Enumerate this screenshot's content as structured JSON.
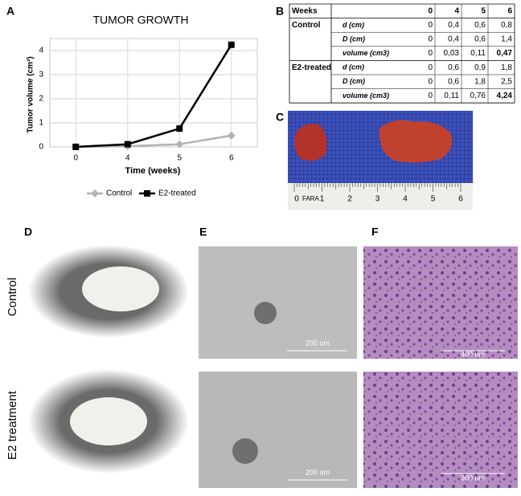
{
  "panel_labels": [
    "A",
    "B",
    "C",
    "D",
    "E",
    "F"
  ],
  "chart_data": {
    "type": "line",
    "title": "TUMOR GROWTH",
    "x_label": "Time (weeks)",
    "y_label": "Tumor volume (cm³)",
    "categories": [
      "0",
      "4",
      "5",
      "6"
    ],
    "series": [
      {
        "name": "Control",
        "color": "#b3b3b3",
        "marker": "diamond",
        "values": [
          0,
          0.03,
          0.11,
          0.47
        ]
      },
      {
        "name": "E2-treated",
        "color": "#000000",
        "marker": "square",
        "values": [
          0,
          0.11,
          0.76,
          4.24
        ]
      }
    ],
    "ylim": [
      0,
      4.5
    ],
    "yticks": [
      0,
      1,
      2,
      3,
      4
    ],
    "grid": true,
    "legend": "bottom"
  },
  "table": {
    "header": "Weeks",
    "columns": [
      "0",
      "4",
      "5",
      "6"
    ],
    "groups": [
      {
        "name": "Control",
        "rows": [
          {
            "label": "d (cm)",
            "values": [
              "0",
              "0,4",
              "0,6",
              "0,8"
            ]
          },
          {
            "label": "D (cm)",
            "values": [
              "0",
              "0,4",
              "0,6",
              "1,4"
            ]
          },
          {
            "label": "volume (cm3)",
            "values": [
              "0",
              "0,03",
              "0,11",
              "0,47"
            ]
          }
        ]
      },
      {
        "name": "E2-treated",
        "rows": [
          {
            "label": "d (cm)",
            "values": [
              "0",
              "0,6",
              "0,9",
              "1,8"
            ]
          },
          {
            "label": "D (cm)",
            "values": [
              "0",
              "0,6",
              "1,8",
              "2,5"
            ]
          },
          {
            "label": "volume (cm3)",
            "values": [
              "0",
              "0,11",
              "0,76",
              "4,24"
            ]
          }
        ]
      }
    ]
  },
  "ruler": {
    "brand": "FARA",
    "numbers": [
      "0",
      "1",
      "2",
      "3",
      "4",
      "5",
      "6"
    ]
  },
  "row_labels": [
    "Control",
    "E2 treatment"
  ],
  "scale_bars": {
    "E": [
      "200 um",
      "200 um"
    ],
    "F": [
      "400 um",
      "300 um"
    ]
  }
}
